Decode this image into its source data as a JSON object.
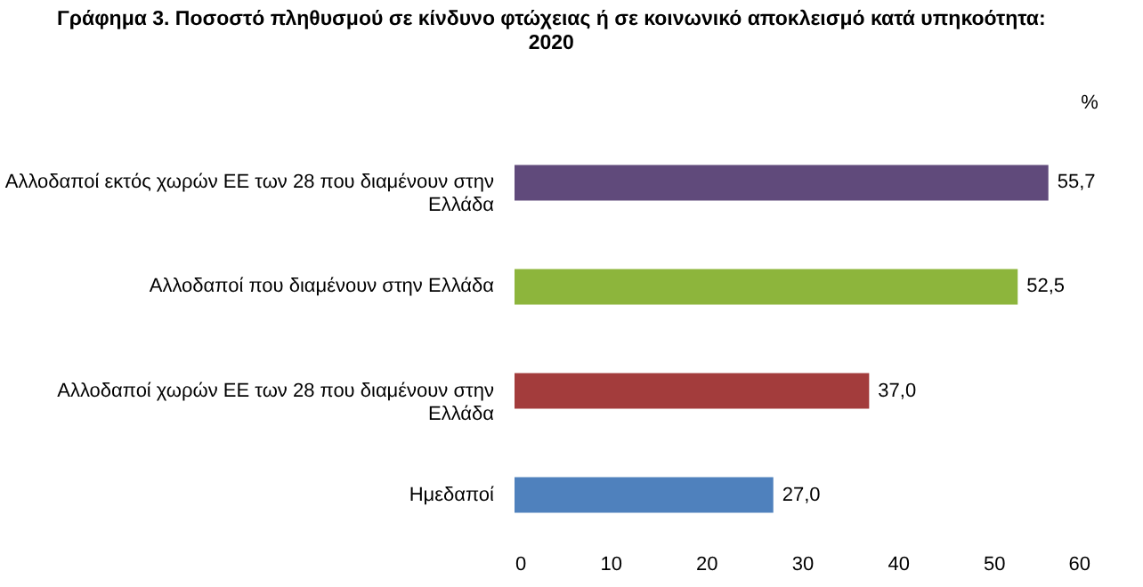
{
  "chart_data": {
    "type": "bar",
    "orientation": "horizontal",
    "title": "Γράφημα 3. Ποσοστό πληθυσμού σε κίνδυνο φτώχειας ή σε κοινωνικό αποκλεισμό κατά υπηκοότητα:\n2020",
    "xlabel": "%",
    "categories": [
      "Αλλοδαποί εκτός χωρών ΕΕ των 28 που διαμένουν στην\nΕλλάδα",
      "Αλλοδαποί που διαμένουν στην Ελλάδα",
      "Αλλοδαποί  χωρών ΕΕ των 28 που διαμένουν στην\nΕλλάδα",
      "Ημεδαποί"
    ],
    "values": [
      55.7,
      52.5,
      37.0,
      27.0
    ],
    "value_labels": [
      "55,7",
      "52,5",
      "37,0",
      "27,0"
    ],
    "colors": [
      "#604a7b",
      "#8db53c",
      "#a33c3c",
      "#4f81bd"
    ],
    "xlim": [
      0,
      60
    ],
    "xticks": [
      0,
      10,
      20,
      30,
      40,
      50,
      60
    ],
    "grid": false
  }
}
